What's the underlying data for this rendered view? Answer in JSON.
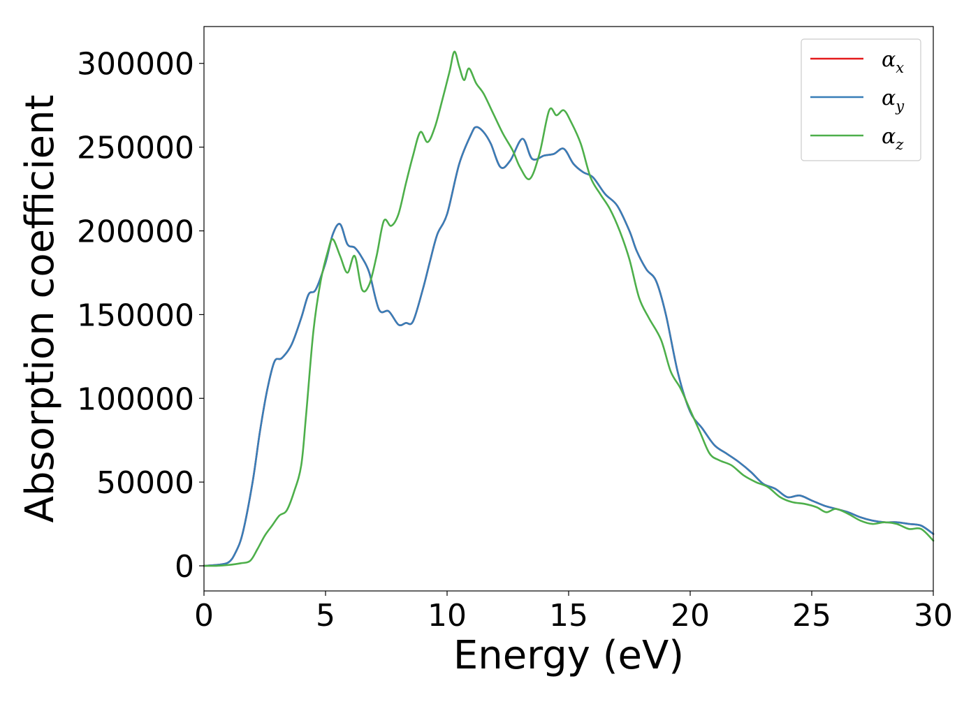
{
  "chart_data": {
    "type": "line",
    "title": "",
    "xlabel": "Energy (eV)",
    "ylabel": "Absorption coefficient",
    "xlim": [
      0,
      30
    ],
    "ylim": [
      -15000,
      322000
    ],
    "xticks": [
      0,
      5,
      10,
      15,
      20,
      25,
      30
    ],
    "xtick_labels": [
      "0",
      "5",
      "10",
      "15",
      "20",
      "25",
      "30"
    ],
    "yticks": [
      0,
      50000,
      100000,
      150000,
      200000,
      250000,
      300000
    ],
    "ytick_labels": [
      "0",
      "50000",
      "100000",
      "150000",
      "200000",
      "250000",
      "300000"
    ],
    "grid": false,
    "legend_position": "top-right",
    "series": [
      {
        "name": "αx",
        "symbol": "α",
        "subscript": "x",
        "color": "#e41a1c",
        "x": [
          0,
          0.5,
          1,
          1.3,
          1.6,
          2,
          2.3,
          2.6,
          2.9,
          3.2,
          3.6,
          4,
          4.3,
          4.6,
          5,
          5.3,
          5.6,
          5.9,
          6.2,
          6.5,
          6.8,
          7.2,
          7.6,
          8,
          8.3,
          8.6,
          9,
          9.3,
          9.6,
          10,
          10.5,
          11,
          11.2,
          11.5,
          11.8,
          12.2,
          12.6,
          13.1,
          13.5,
          14,
          14.4,
          14.8,
          15.2,
          15.6,
          16,
          16.5,
          17,
          17.5,
          17.8,
          18.2,
          18.6,
          19,
          19.5,
          20,
          20.5,
          21,
          21.5,
          22,
          22.5,
          23,
          23.5,
          24,
          24.5,
          25,
          25.5,
          26,
          26.5,
          27,
          27.5,
          28,
          28.5,
          29,
          29.5,
          30
        ],
        "values": [
          0,
          500,
          2000,
          8000,
          20000,
          50000,
          80000,
          105000,
          122000,
          124000,
          132000,
          148000,
          162000,
          165000,
          181000,
          198000,
          204000,
          192000,
          190000,
          184000,
          175000,
          153000,
          152000,
          144000,
          145000,
          146000,
          165000,
          182000,
          198000,
          210000,
          240000,
          258000,
          262000,
          259000,
          252000,
          238000,
          242000,
          255000,
          243000,
          245000,
          246000,
          249000,
          240000,
          235000,
          232000,
          222000,
          215000,
          200000,
          188000,
          177000,
          170000,
          150000,
          115000,
          92000,
          82000,
          72000,
          67000,
          62000,
          56000,
          49000,
          46000,
          41000,
          42000,
          39000,
          36000,
          34000,
          32000,
          29000,
          27000,
          26000,
          26000,
          25000,
          24000,
          19000
        ]
      },
      {
        "name": "αy",
        "symbol": "α",
        "subscript": "y",
        "color": "#377eb8",
        "x": [
          0,
          0.5,
          1,
          1.3,
          1.6,
          2,
          2.3,
          2.6,
          2.9,
          3.2,
          3.6,
          4,
          4.3,
          4.6,
          5,
          5.3,
          5.6,
          5.9,
          6.2,
          6.5,
          6.8,
          7.2,
          7.6,
          8,
          8.3,
          8.6,
          9,
          9.3,
          9.6,
          10,
          10.5,
          11,
          11.2,
          11.5,
          11.8,
          12.2,
          12.6,
          13.1,
          13.5,
          14,
          14.4,
          14.8,
          15.2,
          15.6,
          16,
          16.5,
          17,
          17.5,
          17.8,
          18.2,
          18.6,
          19,
          19.5,
          20,
          20.5,
          21,
          21.5,
          22,
          22.5,
          23,
          23.5,
          24,
          24.5,
          25,
          25.5,
          26,
          26.5,
          27,
          27.5,
          28,
          28.5,
          29,
          29.5,
          30
        ],
        "values": [
          0,
          500,
          2000,
          8000,
          20000,
          50000,
          80000,
          105000,
          122000,
          124000,
          132000,
          148000,
          162000,
          165000,
          181000,
          198000,
          204000,
          192000,
          190000,
          184000,
          175000,
          153000,
          152000,
          144000,
          145000,
          146000,
          165000,
          182000,
          198000,
          210000,
          240000,
          258000,
          262000,
          259000,
          252000,
          238000,
          242000,
          255000,
          243000,
          245000,
          246000,
          249000,
          240000,
          235000,
          232000,
          222000,
          215000,
          200000,
          188000,
          177000,
          170000,
          150000,
          115000,
          92000,
          82000,
          72000,
          67000,
          62000,
          56000,
          49000,
          46000,
          41000,
          42000,
          39000,
          36000,
          34000,
          32000,
          29000,
          27000,
          26000,
          26000,
          25000,
          24000,
          19000
        ]
      },
      {
        "name": "αz",
        "symbol": "α",
        "subscript": "z",
        "color": "#4daf4a",
        "x": [
          0,
          0.5,
          1,
          1.5,
          1.9,
          2.2,
          2.5,
          2.8,
          3.1,
          3.4,
          3.7,
          4,
          4.2,
          4.5,
          4.8,
          5.1,
          5.3,
          5.6,
          5.9,
          6.2,
          6.5,
          6.8,
          7.1,
          7.4,
          7.7,
          8,
          8.3,
          8.6,
          8.9,
          9.2,
          9.5,
          9.8,
          10.1,
          10.3,
          10.5,
          10.7,
          10.9,
          11.2,
          11.5,
          11.9,
          12.3,
          12.7,
          13.0,
          13.4,
          13.8,
          14.2,
          14.5,
          14.8,
          15.1,
          15.5,
          15.9,
          16.3,
          16.7,
          17.1,
          17.5,
          17.9,
          18.3,
          18.8,
          19.2,
          19.6,
          20,
          20.4,
          20.8,
          21.2,
          21.7,
          22.2,
          22.7,
          23.2,
          23.7,
          24.2,
          24.7,
          25.2,
          25.6,
          26,
          26.5,
          27,
          27.5,
          28,
          28.5,
          29,
          29.5,
          30
        ],
        "values": [
          0,
          0,
          500,
          1500,
          3000,
          10000,
          18000,
          24000,
          30000,
          33000,
          44000,
          60000,
          90000,
          140000,
          170000,
          188000,
          195000,
          185000,
          175000,
          185000,
          165000,
          168000,
          185000,
          206000,
          203000,
          210000,
          228000,
          245000,
          259000,
          253000,
          262000,
          278000,
          295000,
          307000,
          298000,
          290000,
          297000,
          288000,
          282000,
          270000,
          258000,
          248000,
          238000,
          231000,
          246000,
          272000,
          269000,
          272000,
          265000,
          252000,
          232000,
          222000,
          213000,
          200000,
          183000,
          160000,
          148000,
          135000,
          116000,
          106000,
          93000,
          80000,
          67000,
          63000,
          60000,
          54000,
          50000,
          47000,
          41000,
          38000,
          37000,
          35000,
          32000,
          34000,
          31000,
          27000,
          25000,
          26000,
          25000,
          22000,
          22000,
          15000
        ]
      }
    ]
  }
}
